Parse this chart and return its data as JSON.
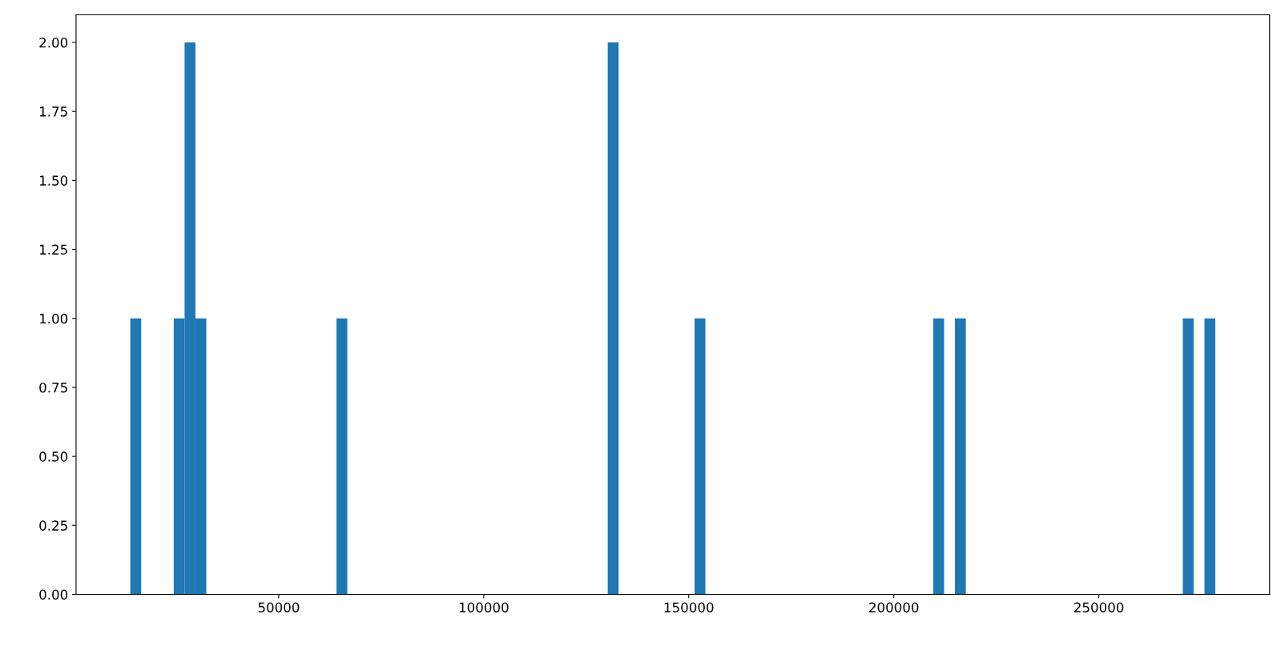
{
  "chart_data": {
    "type": "histogram",
    "bins": [
      13810,
      16460,
      24400,
      27040,
      29690,
      32340,
      64090,
      66730,
      130240,
      132880,
      151410,
      154050,
      209620,
      212260,
      214910,
      217560,
      270480,
      273120,
      275770,
      278410
    ],
    "values": [
      1,
      0,
      1,
      2,
      1,
      0,
      1,
      0,
      2,
      0,
      1,
      0,
      1,
      0,
      1,
      0,
      1,
      0,
      1
    ],
    "color": "#1f77b4",
    "xlim": [
      580,
      291640
    ],
    "xticks": [
      50000,
      100000,
      150000,
      200000,
      250000
    ],
    "ylim": [
      0,
      2.1
    ],
    "yticks": [
      {
        "value": 0,
        "label": "0.00"
      },
      {
        "value": 0.25,
        "label": "0.25"
      },
      {
        "value": 0.5,
        "label": "0.50"
      },
      {
        "value": 0.75,
        "label": "0.75"
      },
      {
        "value": 1,
        "label": "1.00"
      },
      {
        "value": 1.25,
        "label": "1.25"
      },
      {
        "value": 1.5,
        "label": "1.50"
      },
      {
        "value": 1.75,
        "label": "1.75"
      },
      {
        "value": 2,
        "label": "2.00"
      }
    ],
    "grid": false
  }
}
